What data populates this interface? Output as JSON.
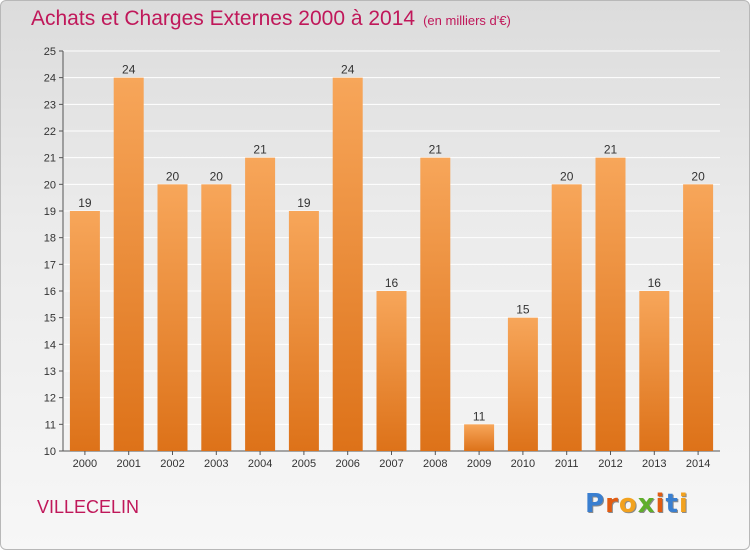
{
  "header": {
    "title": "Achats et Charges Externes 2000 à 2014",
    "unit": "(en milliers d'€)"
  },
  "footer": {
    "commune": "VILLECELIN",
    "logo_text": "Proxiti",
    "logo_letters": [
      {
        "ch": "P",
        "color": "#3a7fd0"
      },
      {
        "ch": "r",
        "color": "#e25c12"
      },
      {
        "ch": "o",
        "color": "#f2a21f"
      },
      {
        "ch": "x",
        "color": "#5fae2b"
      },
      {
        "ch": "i",
        "color": "#e25c12"
      },
      {
        "ch": "t",
        "color": "#3a7fd0"
      },
      {
        "ch": "i",
        "color": "#f2a21f"
      }
    ]
  },
  "colors": {
    "bar_top": "#f7a65a",
    "bar_bottom": "#dd7219",
    "title": "#c0185a",
    "grid": "#ffffff",
    "axis": "#555555"
  },
  "chart_data": {
    "type": "bar",
    "title": "Achats et Charges Externes 2000 à 2014",
    "subtitle": "(en milliers d'€)",
    "xlabel": "",
    "ylabel": "",
    "categories": [
      "2000",
      "2001",
      "2002",
      "2003",
      "2004",
      "2005",
      "2006",
      "2007",
      "2008",
      "2009",
      "2010",
      "2011",
      "2012",
      "2013",
      "2014"
    ],
    "values": [
      19,
      24,
      20,
      20,
      21,
      19,
      24,
      16,
      21,
      11,
      15,
      20,
      21,
      16,
      20
    ],
    "ylim": [
      10,
      25
    ],
    "yticks": [
      10,
      11,
      12,
      13,
      14,
      15,
      16,
      17,
      18,
      19,
      20,
      21,
      22,
      23,
      24,
      25
    ],
    "grid": true,
    "legend": "none"
  }
}
